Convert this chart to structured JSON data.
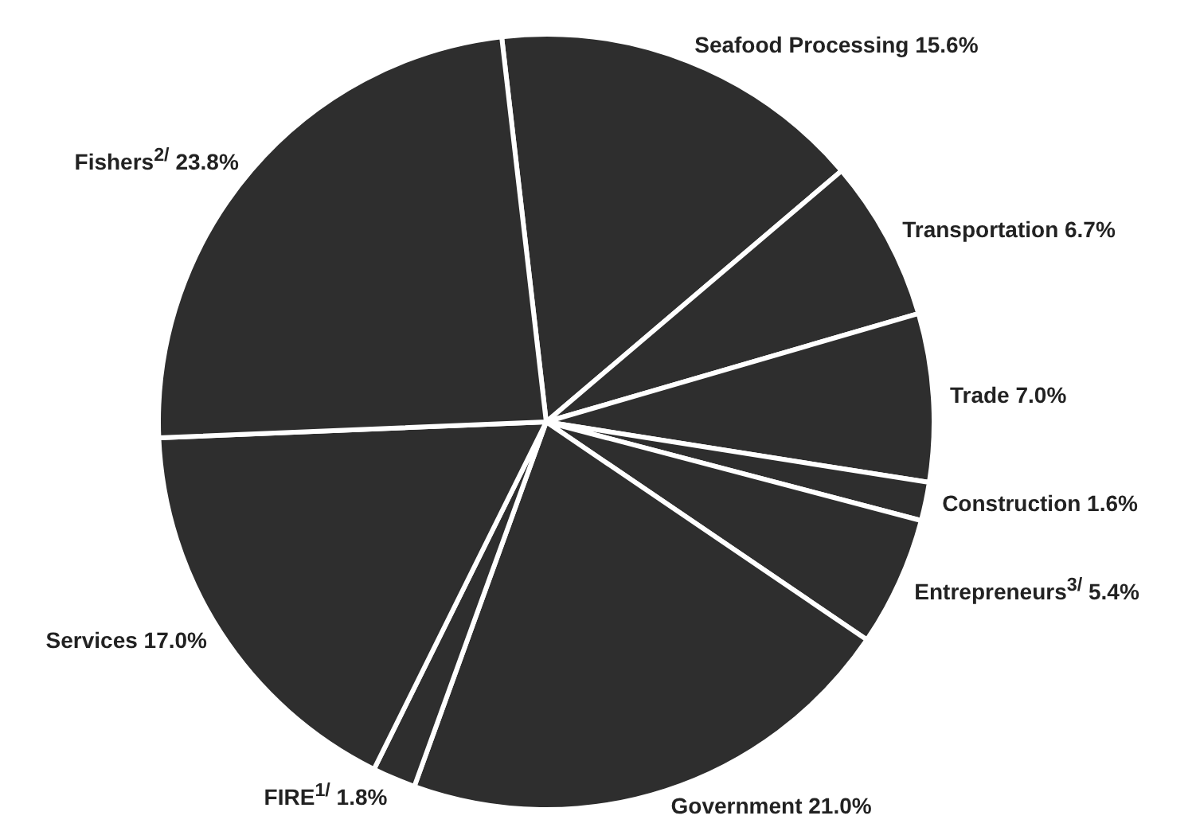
{
  "chart_data": {
    "type": "pie",
    "categories": [
      "Seafood Processing",
      "Transportation",
      "Trade",
      "Construction",
      "Entrepreneurs$^{3/}$",
      "Government",
      "FIRE$^{1/}$",
      "Services",
      "Fishers$^{2/}$"
    ],
    "values": [
      15.6,
      6.7,
      7.0,
      1.6,
      5.4,
      21.0,
      1.8,
      17.0,
      23.8
    ],
    "value_labels": [
      "15.6%",
      "6.7%",
      "7.0%",
      "1.6%",
      "5.4%",
      "21.0%",
      "1.8%",
      "17.0%",
      "23.8%"
    ],
    "colors": [
      "#2e2e2e",
      "#2e2e2e",
      "#2e2e2e",
      "#2e2e2e",
      "#2e2e2e",
      "#2e2e2e",
      "#2e2e2e",
      "#2e2e2e",
      "#2e2e2e"
    ],
    "legend": false
  }
}
